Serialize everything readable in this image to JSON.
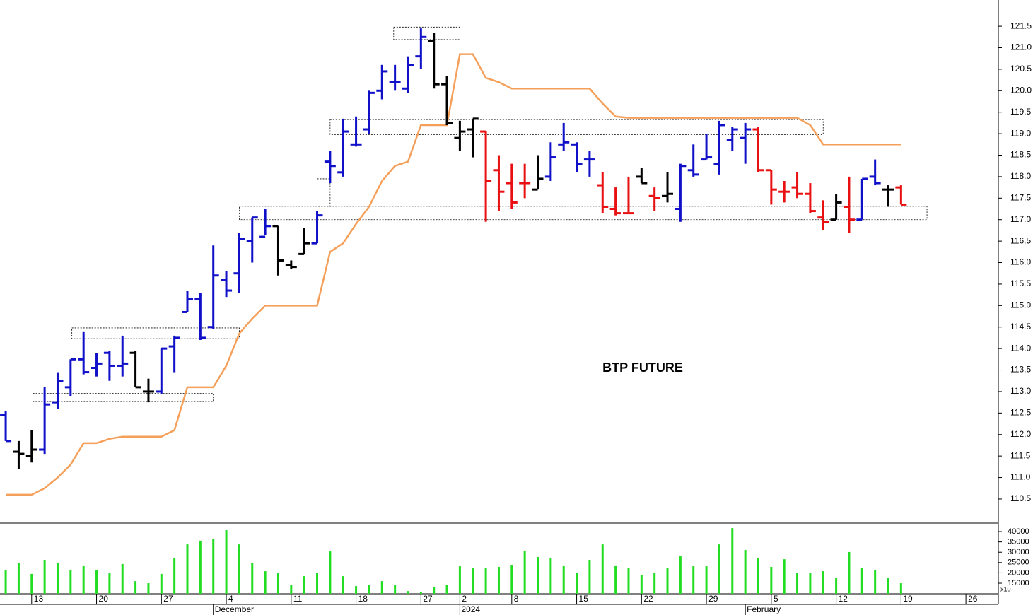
{
  "chart_data": {
    "type": "ohlc",
    "title": "BTP FUTURE",
    "x": [
      0,
      1,
      2,
      3,
      4,
      5,
      6,
      7,
      8,
      9,
      10,
      11,
      12,
      13,
      14,
      15,
      16,
      17,
      18,
      19,
      20,
      21,
      22,
      23,
      24,
      25,
      26,
      27,
      28,
      29,
      30,
      31,
      32,
      33,
      34,
      35,
      36,
      37,
      38,
      39,
      40,
      41,
      42,
      43,
      44,
      45,
      46,
      47,
      48,
      49,
      50,
      51,
      52,
      53,
      54,
      55,
      56,
      57,
      58,
      59,
      60,
      61,
      62,
      63,
      64,
      65,
      66,
      67,
      68,
      69
    ],
    "open": [
      112.45,
      111.6,
      111.5,
      111.65,
      112.75,
      113.1,
      113.75,
      113.55,
      113.9,
      113.6,
      113.9,
      113.0,
      113.0,
      114.05,
      114.85,
      115.15,
      114.5,
      115.6,
      115.75,
      116.5,
      116.6,
      116.85,
      115.95,
      116.2,
      116.45,
      118.35,
      118.1,
      118.75,
      119.1,
      120.0,
      120.2,
      120.05,
      120.8,
      121.15,
      120.15,
      118.9,
      119.1,
      119.05,
      118.15,
      117.85,
      117.85,
      117.7,
      118.0,
      118.75,
      118.75,
      118.4,
      117.8,
      117.25,
      117.15,
      118.0,
      117.55,
      117.55,
      117.25,
      118.15,
      118.4,
      118.3,
      118.85,
      118.9,
      119.1,
      118.15,
      117.65,
      117.75,
      117.6,
      117.05,
      117.0,
      117.3,
      117.0,
      118.0,
      117.7,
      117.75
    ],
    "high": [
      112.55,
      111.85,
      112.1,
      113.1,
      113.45,
      113.75,
      114.4,
      113.9,
      113.95,
      114.3,
      113.95,
      113.3,
      114.0,
      114.3,
      115.35,
      115.3,
      116.4,
      115.8,
      116.7,
      117.05,
      117.25,
      116.85,
      116.05,
      116.8,
      117.2,
      118.6,
      119.35,
      119.4,
      120.0,
      120.6,
      120.6,
      120.8,
      121.45,
      121.35,
      120.35,
      119.3,
      119.35,
      119.05,
      118.5,
      118.3,
      118.3,
      118.5,
      118.8,
      119.25,
      118.8,
      118.6,
      118.1,
      117.75,
      118.0,
      118.2,
      117.75,
      118.1,
      118.3,
      118.75,
      119.0,
      119.3,
      119.15,
      119.25,
      119.15,
      118.15,
      117.9,
      118.1,
      117.85,
      117.45,
      117.6,
      118.0,
      117.95,
      118.4,
      117.8,
      117.8
    ],
    "low": [
      111.85,
      111.2,
      111.35,
      111.55,
      112.6,
      112.9,
      113.4,
      113.35,
      113.25,
      113.35,
      113.1,
      112.75,
      112.95,
      113.45,
      114.85,
      114.2,
      114.45,
      115.2,
      115.3,
      116.0,
      116.65,
      115.7,
      115.85,
      116.2,
      116.45,
      117.85,
      118.0,
      118.7,
      119.0,
      119.8,
      120.0,
      119.95,
      120.5,
      120.05,
      119.2,
      118.6,
      118.45,
      116.95,
      117.2,
      117.25,
      117.5,
      117.7,
      117.9,
      118.6,
      118.1,
      118.0,
      117.15,
      117.1,
      117.15,
      117.85,
      117.2,
      117.4,
      116.95,
      118.0,
      118.4,
      118.05,
      118.6,
      118.3,
      118.1,
      117.35,
      117.4,
      117.5,
      117.15,
      116.75,
      117.0,
      116.7,
      117.0,
      117.8,
      117.3,
      117.35
    ],
    "close": [
      111.85,
      111.55,
      111.65,
      112.7,
      113.25,
      113.75,
      113.45,
      113.65,
      113.6,
      113.65,
      113.1,
      113.0,
      114.0,
      114.25,
      115.15,
      114.25,
      115.7,
      115.35,
      116.55,
      117.05,
      116.85,
      116.05,
      115.9,
      116.45,
      117.1,
      118.25,
      119.05,
      118.75,
      119.95,
      120.45,
      120.2,
      120.6,
      121.25,
      120.15,
      119.25,
      119.05,
      119.35,
      117.9,
      117.65,
      117.4,
      117.85,
      117.95,
      118.45,
      118.8,
      118.3,
      118.4,
      117.3,
      117.15,
      117.15,
      117.85,
      117.5,
      117.6,
      118.25,
      118.05,
      118.45,
      119.2,
      119.1,
      119.1,
      118.15,
      117.7,
      117.65,
      117.6,
      117.2,
      116.95,
      117.4,
      117.0,
      117.95,
      117.85,
      117.7,
      117.35
    ],
    "bar_colors": [
      "#1010c8",
      "#000000",
      "#000000",
      "#1010c8",
      "#1010c8",
      "#1010c8",
      "#1010c8",
      "#1010c8",
      "#1010c8",
      "#1010c8",
      "#000000",
      "#000000",
      "#1010c8",
      "#1010c8",
      "#1010c8",
      "#1010c8",
      "#1010c8",
      "#1010c8",
      "#1010c8",
      "#1010c8",
      "#1010c8",
      "#000000",
      "#000000",
      "#000000",
      "#1010c8",
      "#1010c8",
      "#1010c8",
      "#1010c8",
      "#1010c8",
      "#1010c8",
      "#1010c8",
      "#1010c8",
      "#1010c8",
      "#000000",
      "#000000",
      "#000000",
      "#000000",
      "#e81010",
      "#e81010",
      "#e81010",
      "#e81010",
      "#000000",
      "#1010c8",
      "#1010c8",
      "#1010c8",
      "#1010c8",
      "#e81010",
      "#e81010",
      "#e81010",
      "#000000",
      "#e81010",
      "#000000",
      "#1010c8",
      "#1010c8",
      "#1010c8",
      "#1010c8",
      "#1010c8",
      "#1010c8",
      "#e81010",
      "#e81010",
      "#e81010",
      "#e81010",
      "#e81010",
      "#e81010",
      "#000000",
      "#e81010",
      "#1010c8",
      "#1010c8",
      "#000000",
      "#e81010"
    ],
    "xlim": [
      -0.44,
      76.5
    ],
    "xticks": [
      {
        "value": 2,
        "label": "13"
      },
      {
        "value": 7,
        "label": "20"
      },
      {
        "value": 12,
        "label": "27"
      },
      {
        "value": 17,
        "label": "4"
      },
      {
        "value": 22,
        "label": "11"
      },
      {
        "value": 27,
        "label": "18"
      },
      {
        "value": 32,
        "label": "27"
      },
      {
        "value": 35,
        "label": "2"
      },
      {
        "value": 39,
        "label": "8"
      },
      {
        "value": 44,
        "label": "15"
      },
      {
        "value": 49,
        "label": "22"
      },
      {
        "value": 54,
        "label": "29"
      },
      {
        "value": 59,
        "label": "5"
      },
      {
        "value": 64,
        "label": "12"
      },
      {
        "value": 69,
        "label": "19"
      },
      {
        "value": 74,
        "label": "26"
      }
    ],
    "x_month_ticks": [
      {
        "value": 16,
        "label": "December"
      },
      {
        "value": 35,
        "label": "2024"
      },
      {
        "value": 57,
        "label": "February"
      }
    ],
    "ylim": [
      109.94,
      122.11
    ],
    "yticks": [
      110.5,
      {
        "value": 111,
        "label": "111.0"
      },
      111.5,
      {
        "value": 112,
        "label": "112.0"
      },
      112.5,
      {
        "value": 113,
        "label": "113.0"
      },
      113.5,
      {
        "value": 114,
        "label": "114.0"
      },
      114.5,
      {
        "value": 115,
        "label": "115.0"
      },
      115.5,
      {
        "value": 116,
        "label": "116.0"
      },
      116.5,
      {
        "value": 117,
        "label": "117.0"
      },
      117.5,
      {
        "value": 118,
        "label": "118.0"
      },
      118.5,
      {
        "value": 119,
        "label": "119.0"
      },
      119.5,
      {
        "value": 120,
        "label": "120.0"
      },
      120.5,
      {
        "value": 121,
        "label": "121.0"
      },
      121.5
    ],
    "stop_line": {
      "color": "#f5a05a",
      "values": [
        110.6,
        110.6,
        110.6,
        110.75,
        111.0,
        111.3,
        111.8,
        111.8,
        111.9,
        111.95,
        111.95,
        111.95,
        111.95,
        112.1,
        113.1,
        113.1,
        113.1,
        113.6,
        114.35,
        114.7,
        115.0,
        115.0,
        115.0,
        115.0,
        115.0,
        116.25,
        116.45,
        116.9,
        117.3,
        117.9,
        118.25,
        118.35,
        119.2,
        119.2,
        119.2,
        120.85,
        120.85,
        120.3,
        120.2,
        120.05,
        120.05,
        120.05,
        120.05,
        120.05,
        120.05,
        120.05,
        119.7,
        119.4,
        119.37,
        119.37,
        119.37,
        119.37,
        119.37,
        119.37,
        119.37,
        119.37,
        119.37,
        119.37,
        119.37,
        119.37,
        119.37,
        119.37,
        119.2,
        118.75,
        118.75,
        118.75,
        118.75,
        118.75,
        118.75,
        118.75
      ]
    },
    "ranges": [
      {
        "x": [
          29.9,
          35.0
        ],
        "y": [
          121.19,
          121.48
        ]
      },
      {
        "x": [
          25.0,
          63.0
        ],
        "y": [
          118.98,
          119.33
        ]
      },
      {
        "x": [
          24.0,
          25.0
        ],
        "y": [
          117.31,
          117.95
        ]
      },
      {
        "x": [
          18.0,
          71.0
        ],
        "y": [
          117.0,
          117.31
        ]
      },
      {
        "x": [
          5.1,
          18.0
        ],
        "y": [
          114.23,
          114.48
        ]
      },
      {
        "x": [
          2.1,
          16.0
        ],
        "y": [
          112.77,
          112.96
        ]
      }
    ],
    "volume": {
      "color": "#22dd22",
      "unit_label": "x10",
      "values": [
        21200,
        24900,
        19500,
        26300,
        24600,
        21500,
        23600,
        21500,
        19800,
        24300,
        16000,
        15000,
        19500,
        27000,
        33800,
        35600,
        36600,
        40700,
        33800,
        24900,
        20800,
        20100,
        14300,
        18400,
        20100,
        30400,
        18400,
        13600,
        14000,
        16000,
        14000,
        11200,
        10900,
        13300,
        14000,
        23200,
        22500,
        22500,
        22900,
        23900,
        30800,
        27700,
        27000,
        23600,
        19800,
        26300,
        33800,
        23600,
        22200,
        18800,
        20100,
        22500,
        28000,
        23200,
        23200,
        33800,
        41700,
        31100,
        27000,
        22900,
        26600,
        19800,
        19800,
        20800,
        17400,
        30100,
        22200,
        21200,
        17700,
        15000
      ],
      "ylim": [
        9870,
        43780
      ],
      "yticks": [
        15000,
        20000,
        25000,
        30000,
        35000,
        40000
      ]
    }
  }
}
